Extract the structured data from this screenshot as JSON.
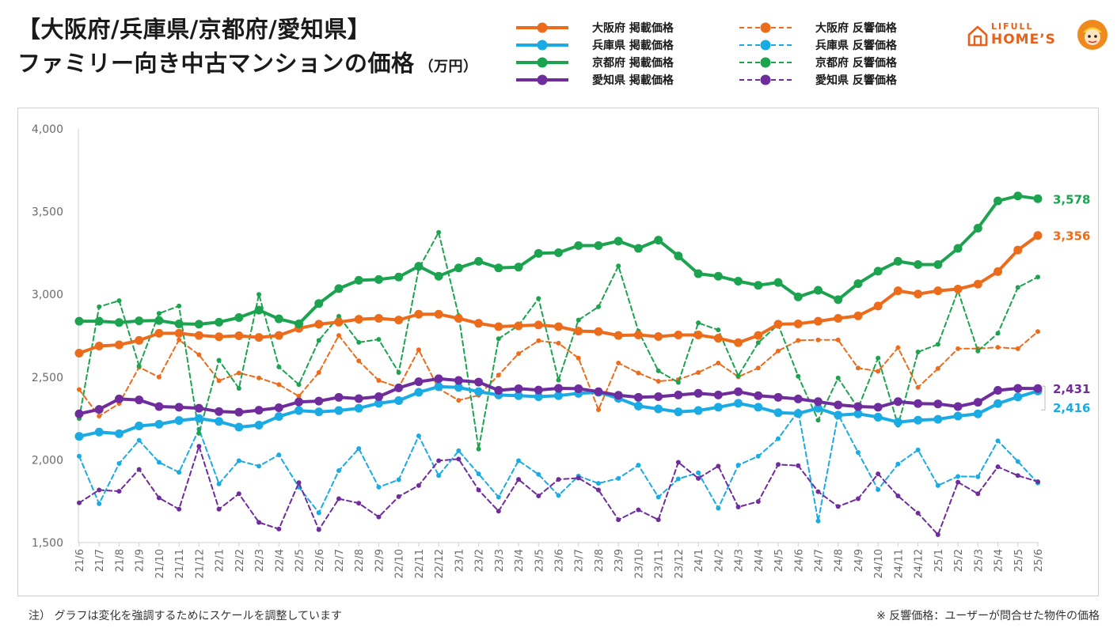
{
  "title": {
    "line1": "【大阪府/兵庫県/京都府/愛知県】",
    "line2": "ファミリー向き中古マンションの価格",
    "unit": "（万円）"
  },
  "brand": {
    "top": "LIFULL",
    "main": "HOME’S",
    "color": "#e8611a"
  },
  "footnote": {
    "left": "注） グラフは変化を強調するためにスケールを調整しています",
    "right": "※ 反響価格：ユーザーが問合せた物件の価格"
  },
  "chart_data": {
    "type": "line",
    "ylim": [
      1500,
      4000
    ],
    "yticks": [
      "4,000",
      "3,500",
      "3,000",
      "2,500",
      "2,000",
      "1,500"
    ],
    "grid": false,
    "legend_position": "top",
    "x": [
      "21/6",
      "21/7",
      "21/8",
      "21/9",
      "21/10",
      "21/11",
      "21/12",
      "22/1",
      "22/2",
      "22/3",
      "22/4",
      "22/5",
      "22/6",
      "22/7",
      "22/8",
      "22/9",
      "22/10",
      "22/11",
      "22/12",
      "23/1",
      "23/2",
      "23/3",
      "23/4",
      "23/5",
      "23/6",
      "23/7",
      "23/8",
      "23/9",
      "23/10",
      "23/11",
      "23/12",
      "24/1",
      "24/2",
      "24/3",
      "24/4",
      "24/5",
      "24/6",
      "24/7",
      "24/8",
      "24/9",
      "24/10",
      "24/11",
      "24/12",
      "25/1",
      "25/2",
      "25/3",
      "25/4",
      "25/5",
      "25/6"
    ],
    "series": [
      {
        "name": "大阪府 掲載価格",
        "color": "#ed6c1c",
        "style": "solid",
        "end_label": "3,356",
        "values": [
          2645,
          2688,
          2695,
          2722,
          2765,
          2765,
          2752,
          2744,
          2750,
          2740,
          2752,
          2795,
          2820,
          2832,
          2850,
          2855,
          2845,
          2880,
          2880,
          2855,
          2825,
          2805,
          2810,
          2815,
          2805,
          2778,
          2775,
          2752,
          2755,
          2745,
          2755,
          2755,
          2735,
          2708,
          2752,
          2820,
          2822,
          2838,
          2855,
          2870,
          2930,
          3022,
          3002,
          3022,
          3032,
          3062,
          3138,
          3268,
          3356
        ]
      },
      {
        "name": "兵庫県 掲載価格",
        "color": "#1aabe4",
        "style": "solid",
        "end_label": "2,416",
        "values": [
          2142,
          2168,
          2158,
          2205,
          2215,
          2238,
          2250,
          2232,
          2198,
          2210,
          2262,
          2298,
          2290,
          2298,
          2312,
          2342,
          2358,
          2408,
          2442,
          2438,
          2412,
          2392,
          2388,
          2382,
          2388,
          2402,
          2408,
          2372,
          2325,
          2308,
          2290,
          2298,
          2318,
          2342,
          2318,
          2285,
          2280,
          2312,
          2270,
          2278,
          2258,
          2228,
          2240,
          2245,
          2265,
          2278,
          2340,
          2380,
          2416
        ]
      },
      {
        "name": "京都府 掲載価格",
        "color": "#1ca350",
        "style": "solid",
        "end_label": "3,578",
        "values": [
          2838,
          2838,
          2830,
          2840,
          2842,
          2822,
          2820,
          2832,
          2860,
          2905,
          2852,
          2822,
          2945,
          3035,
          3085,
          3090,
          3105,
          3170,
          3110,
          3160,
          3200,
          3160,
          3165,
          3248,
          3252,
          3295,
          3295,
          3322,
          3278,
          3328,
          3232,
          3125,
          3110,
          3080,
          3055,
          3072,
          2985,
          3025,
          2968,
          3065,
          3140,
          3200,
          3180,
          3180,
          3278,
          3400,
          3565,
          3595,
          3578
        ]
      },
      {
        "name": "愛知県 掲載価格",
        "color": "#6f2c9c",
        "style": "solid",
        "end_label": "2,431",
        "values": [
          2278,
          2305,
          2368,
          2362,
          2322,
          2318,
          2312,
          2292,
          2288,
          2300,
          2315,
          2350,
          2355,
          2378,
          2370,
          2382,
          2435,
          2472,
          2490,
          2480,
          2470,
          2420,
          2430,
          2422,
          2432,
          2430,
          2412,
          2390,
          2378,
          2382,
          2392,
          2402,
          2392,
          2412,
          2388,
          2378,
          2368,
          2352,
          2332,
          2322,
          2318,
          2352,
          2340,
          2338,
          2322,
          2348,
          2420,
          2432,
          2431
        ]
      },
      {
        "name": "大阪府 反響価格",
        "color": "#ed6c1c",
        "style": "dashed",
        "values": [
          2425,
          2265,
          2340,
          2560,
          2500,
          2725,
          2635,
          2478,
          2525,
          2495,
          2455,
          2385,
          2528,
          2752,
          2598,
          2480,
          2438,
          2665,
          2430,
          2360,
          2390,
          2512,
          2642,
          2720,
          2705,
          2615,
          2303,
          2585,
          2525,
          2475,
          2485,
          2528,
          2585,
          2502,
          2555,
          2658,
          2722,
          2725,
          2725,
          2555,
          2535,
          2678,
          2438,
          2552,
          2672,
          2672,
          2680,
          2672,
          2775
        ]
      },
      {
        "name": "兵庫県 反響価格",
        "color": "#1aabe4",
        "style": "dashed",
        "values": [
          2022,
          1735,
          1978,
          2118,
          1985,
          1925,
          2185,
          1855,
          1995,
          1962,
          2030,
          1835,
          1680,
          1935,
          2068,
          1835,
          1880,
          2145,
          1905,
          2055,
          1915,
          1775,
          1995,
          1912,
          1785,
          1902,
          1858,
          1888,
          1968,
          1775,
          1885,
          1922,
          1708,
          1968,
          2022,
          2128,
          2295,
          1630,
          2275,
          2045,
          1820,
          1975,
          2060,
          1845,
          1900,
          1898,
          2115,
          1990,
          1860
        ]
      },
      {
        "name": "京都府 反響価格",
        "color": "#1ca350",
        "style": "dashed",
        "values": [
          2250,
          2925,
          2962,
          2568,
          2885,
          2930,
          2160,
          2602,
          2432,
          3000,
          2562,
          2455,
          2722,
          2868,
          2710,
          2728,
          2528,
          3155,
          3375,
          2872,
          2065,
          2732,
          2812,
          2975,
          2482,
          2845,
          2925,
          3172,
          2778,
          2538,
          2468,
          2828,
          2785,
          2508,
          2708,
          2818,
          2505,
          2240,
          2495,
          2312,
          2615,
          2210,
          2652,
          2698,
          3022,
          2658,
          2765,
          3042,
          3105
        ]
      },
      {
        "name": "愛知県 反響価格",
        "color": "#6f2c9c",
        "style": "dashed",
        "values": [
          1740,
          1818,
          1810,
          1942,
          1770,
          1702,
          2082,
          1702,
          1795,
          1622,
          1582,
          1862,
          1578,
          1765,
          1738,
          1655,
          1778,
          1845,
          1995,
          2005,
          1818,
          1690,
          1882,
          1782,
          1882,
          1890,
          1818,
          1638,
          1698,
          1638,
          1985,
          1888,
          1962,
          1715,
          1748,
          1972,
          1965,
          1808,
          1718,
          1765,
          1915,
          1782,
          1678,
          1548,
          1865,
          1795,
          1958,
          1905,
          1868
        ]
      }
    ]
  }
}
